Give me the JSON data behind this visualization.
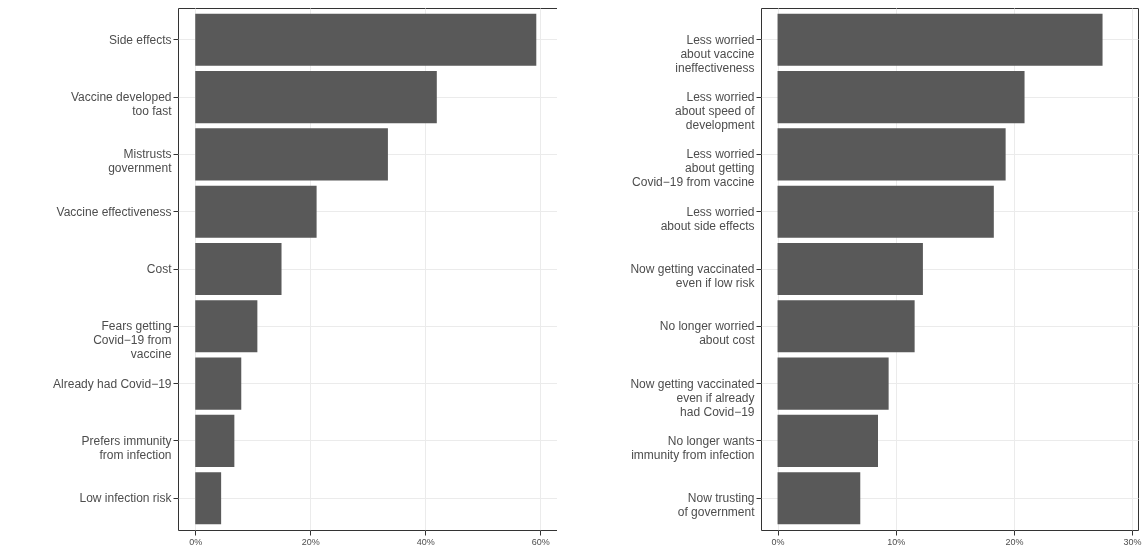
{
  "chart_data": [
    {
      "type": "bar",
      "orientation": "horizontal",
      "categories": [
        "Side effects",
        "Vaccine developed\ntoo fast",
        "Mistrusts\ngovernment",
        "Vaccine effectiveness",
        "Cost",
        "Fears getting\nCovid−19 from\nvaccine",
        "Already had Covid−19",
        "Prefers immunity\nfrom infection",
        "Low infection risk"
      ],
      "values": [
        59.3,
        42.0,
        33.5,
        21.1,
        15.0,
        10.8,
        8.0,
        6.8,
        4.5
      ],
      "color": "#595959",
      "xlim": [
        -3,
        62.9
      ],
      "xticks": [
        {
          "value": 0,
          "label": "0%"
        },
        {
          "value": 20,
          "label": "20%"
        },
        {
          "value": 40,
          "label": "40%"
        },
        {
          "value": 60,
          "label": "60%"
        }
      ],
      "grid": true
    },
    {
      "type": "bar",
      "orientation": "horizontal",
      "categories": [
        "Less worried\nabout vaccine\nineffectiveness",
        "Less worried\nabout speed of\ndevelopment",
        "Less worried\nabout getting\nCovid−19 from vaccine",
        "Less worried\nabout side effects",
        "Now getting vaccinated\neven if low risk",
        "No longer worried\nabout cost",
        "Now getting vaccinated\neven if already\nhad Covid−19",
        "No longer wants\nimmunity from infection",
        "Now trusting\nof government"
      ],
      "values": [
        27.5,
        20.9,
        19.3,
        18.3,
        12.3,
        11.6,
        9.4,
        8.5,
        7.0
      ],
      "color": "#595959",
      "xlim": [
        -1.4,
        30.5
      ],
      "xticks": [
        {
          "value": 0,
          "label": "0%"
        },
        {
          "value": 10,
          "label": "10%"
        },
        {
          "value": 20,
          "label": "20%"
        },
        {
          "value": 30,
          "label": "30%"
        }
      ],
      "grid": true
    }
  ]
}
